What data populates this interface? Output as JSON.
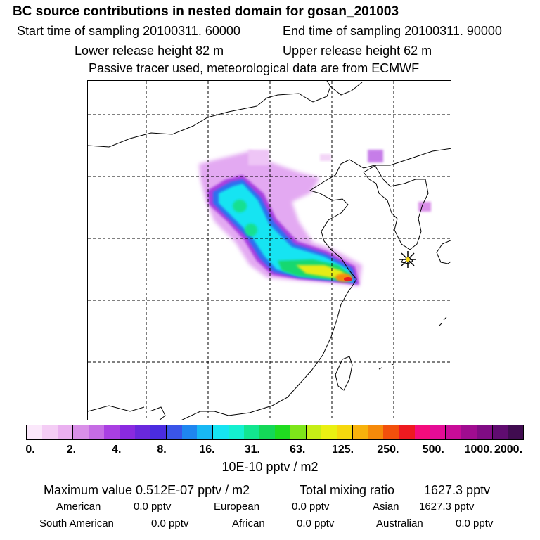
{
  "header": {
    "title": "BC  source contributions in nested domain for gosan_201003",
    "start_label": "Start time of sampling 20100311. 60000",
    "end_label": "End time of sampling 20100311. 90000",
    "lower_release": "Lower release height   82 m",
    "upper_release": "Upper release height   62 m",
    "tracer_note": "Passive tracer used, meteorological data are from ECMWF"
  },
  "colorbar": {
    "colors": [
      "#fbe8fb",
      "#f4cdf5",
      "#eab0f0",
      "#d98fe8",
      "#c56ce4",
      "#a93fe2",
      "#8a2ae0",
      "#6a28dd",
      "#4a2ce0",
      "#3a55e8",
      "#1f86f0",
      "#18b8f4",
      "#16e4f2",
      "#14f0d0",
      "#12e690",
      "#14d858",
      "#20dc20",
      "#7ee61a",
      "#c6ee16",
      "#eaf012",
      "#f6d80e",
      "#f8b20c",
      "#f68a0a",
      "#f2500c",
      "#ee1a20",
      "#f40c7c",
      "#e40c96",
      "#c80c98",
      "#a00c90",
      "#800c84",
      "#600c70",
      "#400c50"
    ],
    "ticks": [
      "0.",
      "2.",
      "4.",
      "8.",
      "16.",
      "31.",
      "63.",
      "125.",
      "250.",
      "500.",
      "1000.",
      "2000."
    ],
    "unit": "10E-10 pptv / m2"
  },
  "summary": {
    "max_label": "Maximum value  0.512E-07 pptv / m2",
    "total_label": "Total mixing ratio",
    "total_value": "1627.3 pptv"
  },
  "regions": [
    {
      "name": "American",
      "value": "0.0 pptv"
    },
    {
      "name": "European",
      "value": "0.0 pptv"
    },
    {
      "name": "Asian",
      "value": "1627.3 pptv"
    },
    {
      "name": "South American",
      "value": "0.0 pptv"
    },
    {
      "name": "African",
      "value": "0.0 pptv"
    },
    {
      "name": "Australian",
      "value": "0.0 pptv"
    }
  ],
  "map": {
    "receptor_icon": "star-marker",
    "grid": true
  }
}
